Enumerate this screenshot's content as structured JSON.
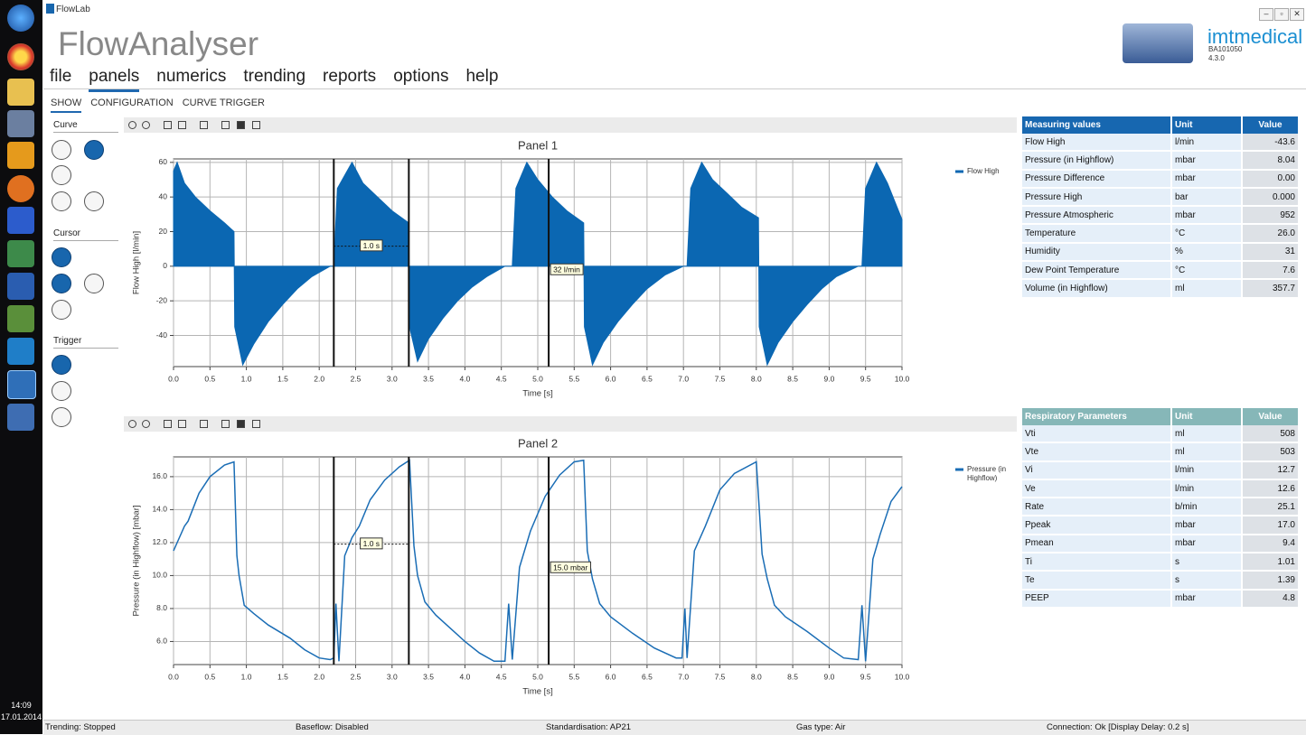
{
  "window_title": "FlowLab",
  "app_title": "FlowAnalyser",
  "menu": [
    "file",
    "panels",
    "numerics",
    "trending",
    "reports",
    "options",
    "help"
  ],
  "tabs": [
    "SHOW",
    "CONFIGURATION",
    "CURVE TRIGGER"
  ],
  "brand": {
    "name": "imtmedical",
    "model": "BA101050",
    "version": "4.3.0"
  },
  "sidebar": {
    "sections": [
      "Curve",
      "Cursor",
      "Trigger"
    ]
  },
  "measuring_table": {
    "headers": [
      "Measuring values",
      "Unit",
      "Value"
    ],
    "rows": [
      [
        "Flow High",
        "l/min",
        "-43.6"
      ],
      [
        "Pressure (in Highflow)",
        "mbar",
        "8.04"
      ],
      [
        "Pressure Difference",
        "mbar",
        "0.00"
      ],
      [
        "Pressure High",
        "bar",
        "0.000"
      ],
      [
        "Pressure Atmospheric",
        "mbar",
        "952"
      ],
      [
        "Temperature",
        "°C",
        "26.0"
      ],
      [
        "Humidity",
        "%",
        "31"
      ],
      [
        "Dew Point Temperature",
        "°C",
        "7.6"
      ],
      [
        "Volume (in Highflow)",
        "ml",
        "357.7"
      ]
    ]
  },
  "respiratory_table": {
    "headers": [
      "Respiratory Parameters",
      "Unit",
      "Value"
    ],
    "rows": [
      [
        "Vti",
        "ml",
        "508"
      ],
      [
        "Vte",
        "ml",
        "503"
      ],
      [
        "Vi",
        "l/min",
        "12.7"
      ],
      [
        "Ve",
        "l/min",
        "12.6"
      ],
      [
        "Rate",
        "b/min",
        "25.1"
      ],
      [
        "Ppeak",
        "mbar",
        "17.0"
      ],
      [
        "Pmean",
        "mbar",
        "9.4"
      ],
      [
        "Ti",
        "s",
        "1.01"
      ],
      [
        "Te",
        "s",
        "1.39"
      ],
      [
        "PEEP",
        "mbar",
        "4.8"
      ]
    ]
  },
  "status_bar": [
    "Trending: Stopped",
    "Baseflow: Disabled",
    "Standardisation: AP21",
    "Gas type: Air",
    "Connection: Ok [Display Delay: 0.2 s]"
  ],
  "taskbar": {
    "time": "14:09",
    "date": "17.01.2014"
  },
  "chart_data": [
    {
      "type": "area",
      "title": "Panel 1",
      "x_label": "Time [s]",
      "y_label": "Flow High [l/min]",
      "x": [
        0,
        0.05,
        0.15,
        0.3,
        0.5,
        0.7,
        0.83,
        0.84,
        0.95,
        1.1,
        1.3,
        1.5,
        1.7,
        1.9,
        2.15,
        2.2,
        2.25,
        2.45,
        2.6,
        2.8,
        3.0,
        3.23,
        3.24,
        3.35,
        3.5,
        3.7,
        3.9,
        4.1,
        4.3,
        4.55,
        4.65,
        4.7,
        4.85,
        5.0,
        5.2,
        5.4,
        5.63,
        5.64,
        5.75,
        5.9,
        6.1,
        6.3,
        6.5,
        6.75,
        7.0,
        7.05,
        7.1,
        7.25,
        7.4,
        7.6,
        7.8,
        8.03,
        8.04,
        8.15,
        8.3,
        8.5,
        8.7,
        8.9,
        9.1,
        9.4,
        9.45,
        9.5,
        9.65,
        9.8,
        10.0
      ],
      "series": [
        {
          "name": "Flow High",
          "color": "#0b67b2",
          "values": [
            55,
            60,
            48,
            40,
            32,
            25,
            20,
            -35,
            -57,
            -45,
            -32,
            -22,
            -13,
            -6,
            0,
            0,
            45,
            60,
            48,
            40,
            32,
            25,
            -35,
            -55,
            -42,
            -30,
            -20,
            -12,
            -6,
            0,
            0,
            45,
            60,
            50,
            40,
            32,
            25,
            -35,
            -57,
            -44,
            -32,
            -22,
            -13,
            -5,
            0,
            0,
            45,
            60,
            50,
            42,
            34,
            28,
            -35,
            -57,
            -44,
            -32,
            -22,
            -13,
            -6,
            0,
            0,
            45,
            60,
            48,
            27
          ]
        }
      ],
      "xlim": [
        0,
        10
      ],
      "ylim": [
        -58,
        62
      ],
      "xticks": [
        {
          "value": 0,
          "label": "0.0"
        },
        0.5,
        {
          "value": 1,
          "label": "1.0"
        },
        1.5,
        {
          "value": 2,
          "label": "2.0"
        },
        2.5,
        {
          "value": 3,
          "label": "3.0"
        },
        3.5,
        {
          "value": 4,
          "label": "4.0"
        },
        4.5,
        {
          "value": 5,
          "label": "5.0"
        },
        5.5,
        {
          "value": 6,
          "label": "6.0"
        },
        6.5,
        {
          "value": 7,
          "label": "7.0"
        },
        7.5,
        {
          "value": 8,
          "label": "8.0"
        },
        8.5,
        {
          "value": 9,
          "label": "9.0"
        },
        9.5,
        {
          "value": 10,
          "label": "10.0"
        }
      ],
      "yticks": [
        -40,
        -20,
        0,
        20,
        40,
        60
      ],
      "grid": true,
      "cursors": [
        2.2,
        3.23,
        5.15
      ],
      "cursor_labels": [
        "1.0 s",
        "32 l/min"
      ]
    },
    {
      "type": "line",
      "title": "Panel 2",
      "x_label": "Time [s]",
      "y_label": "Pressure (in Highflow) [mbar]",
      "x": [
        0,
        0.15,
        0.2,
        0.35,
        0.5,
        0.7,
        0.83,
        0.87,
        0.9,
        0.97,
        1.1,
        1.3,
        1.6,
        1.8,
        2.0,
        2.15,
        2.2,
        2.23,
        2.27,
        2.35,
        2.45,
        2.55,
        2.7,
        2.9,
        3.1,
        3.24,
        3.3,
        3.35,
        3.45,
        3.6,
        3.8,
        4.0,
        4.2,
        4.4,
        4.55,
        4.6,
        4.65,
        4.75,
        4.9,
        5.1,
        5.3,
        5.5,
        5.63,
        5.68,
        5.75,
        5.85,
        6.0,
        6.3,
        6.6,
        6.9,
        6.98,
        7.02,
        7.05,
        7.15,
        7.3,
        7.5,
        7.7,
        8.0,
        8.08,
        8.15,
        8.25,
        8.4,
        8.7,
        9.0,
        9.2,
        9.4,
        9.45,
        9.5,
        9.6,
        9.7,
        9.85,
        10.0
      ],
      "series": [
        {
          "name": "Pressure (in Highflow)",
          "color": "#1a6db5",
          "values": [
            11.5,
            13,
            13.3,
            15,
            16,
            16.7,
            16.9,
            11.2,
            10,
            8.2,
            7.7,
            7,
            6.2,
            5.5,
            5,
            4.9,
            5.0,
            8.3,
            4.8,
            11.2,
            12.3,
            13,
            14.6,
            15.8,
            16.6,
            17.0,
            11.8,
            10,
            8.4,
            7.6,
            6.8,
            6.0,
            5.3,
            4.8,
            4.8,
            8.3,
            4.9,
            10.5,
            12.7,
            14.8,
            16.1,
            16.9,
            17.0,
            11.5,
            9.8,
            8.3,
            7.5,
            6.5,
            5.6,
            5.0,
            5.0,
            8.0,
            5.0,
            11.5,
            13.0,
            15.2,
            16.2,
            16.9,
            11.3,
            9.8,
            8.2,
            7.5,
            6.6,
            5.6,
            5.0,
            4.9,
            8.2,
            4.8,
            11.0,
            12.5,
            14.5,
            15.4
          ]
        }
      ],
      "xlim": [
        0,
        10
      ],
      "ylim": [
        4.6,
        17.2
      ],
      "xticks": [
        {
          "value": 0,
          "label": "0.0"
        },
        0.5,
        {
          "value": 1,
          "label": "1.0"
        },
        1.5,
        {
          "value": 2,
          "label": "2.0"
        },
        2.5,
        {
          "value": 3,
          "label": "3.0"
        },
        3.5,
        {
          "value": 4,
          "label": "4.0"
        },
        4.5,
        {
          "value": 5,
          "label": "5.0"
        },
        5.5,
        {
          "value": 6,
          "label": "6.0"
        },
        6.5,
        {
          "value": 7,
          "label": "7.0"
        },
        7.5,
        {
          "value": 8,
          "label": "8.0"
        },
        8.5,
        {
          "value": 9,
          "label": "9.0"
        },
        9.5,
        {
          "value": 10,
          "label": "10.0"
        }
      ],
      "yticks": [
        {
          "value": 6,
          "label": "6.0"
        },
        {
          "value": 8,
          "label": "8.0"
        },
        {
          "value": 10,
          "label": "10.0"
        },
        {
          "value": 12,
          "label": "12.0"
        },
        {
          "value": 14,
          "label": "14.0"
        },
        {
          "value": 16,
          "label": "16.0"
        }
      ],
      "grid": true,
      "cursors": [
        2.2,
        3.23,
        5.15
      ],
      "cursor_labels": [
        "1.0 s",
        "15.0 mbar"
      ]
    }
  ]
}
